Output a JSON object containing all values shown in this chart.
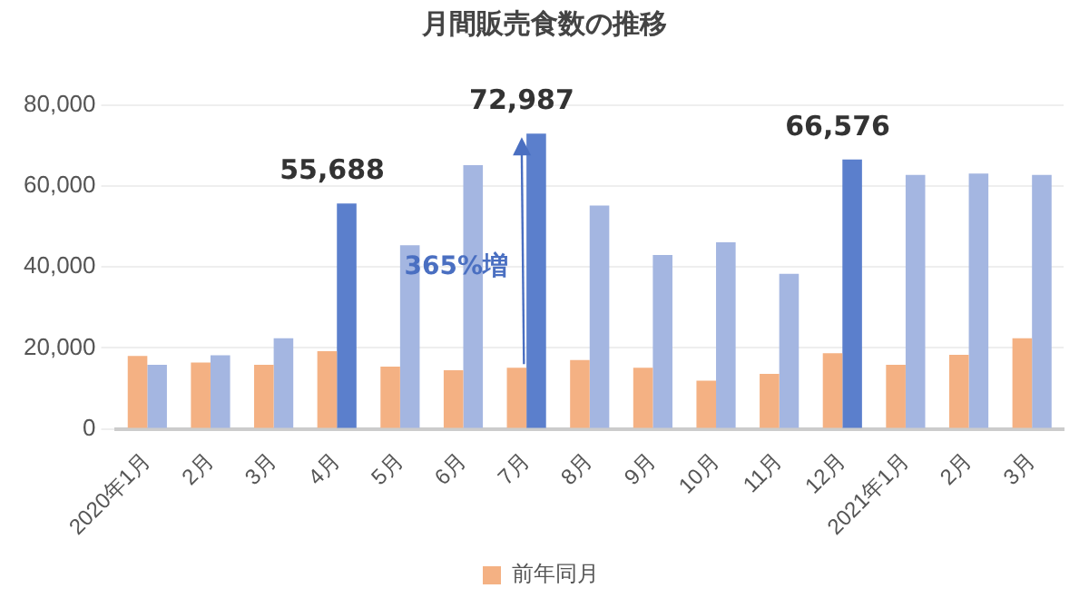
{
  "chart_data": {
    "type": "bar",
    "title": "月間販売食数の推移",
    "categories": [
      "2020年1月",
      "2月",
      "3月",
      "4月",
      "5月",
      "6月",
      "7月",
      "8月",
      "9月",
      "10月",
      "11月",
      "12月",
      "2021年1月",
      "2月",
      "3月"
    ],
    "series": [
      {
        "name": "前年同月",
        "color": "#f4b183",
        "values": [
          18000,
          16400,
          15800,
          19200,
          15400,
          14500,
          15100,
          17000,
          15100,
          11900,
          13600,
          18700,
          15800,
          18300,
          22400
        ]
      },
      {
        "colors": [
          "#a4b6e1",
          "#a4b6e1",
          "#a4b6e1",
          "#5b7fcc",
          "#a4b6e1",
          "#a4b6e1",
          "#5b7fcc",
          "#a4b6e1",
          "#a4b6e1",
          "#a4b6e1",
          "#a4b6e1",
          "#5b7fcc",
          "#a4b6e1",
          "#a4b6e1",
          "#a4b6e1"
        ],
        "values": [
          15800,
          18200,
          22400,
          55688,
          45400,
          65200,
          72987,
          55200,
          43000,
          46100,
          38300,
          66576,
          62800,
          63100,
          62800
        ],
        "value_labels": [
          null,
          null,
          null,
          "55,688",
          null,
          null,
          "72,987",
          null,
          null,
          null,
          null,
          "66,576",
          null,
          null,
          null
        ]
      }
    ],
    "ylim": [
      0,
      80000
    ],
    "yticks": [
      0,
      {
        "value": 20000,
        "label": "20,000"
      },
      {
        "value": 40000,
        "label": "40,000"
      },
      {
        "value": 60000,
        "label": "60,000"
      },
      {
        "value": 80000,
        "label": "80,000"
      }
    ],
    "grid": "y",
    "legend": "bottom",
    "annotations": [
      {
        "text": "365%増",
        "x": "7月",
        "y": 40000
      }
    ]
  }
}
